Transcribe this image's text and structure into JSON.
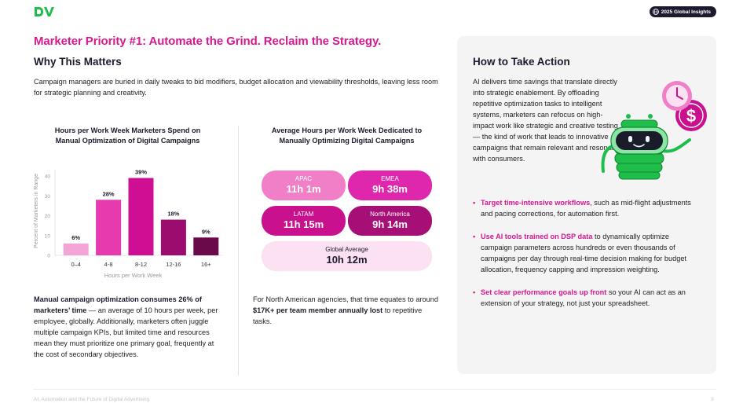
{
  "header": {
    "badge_label": "2025 Global Insights",
    "accent": "#d6198f",
    "logo_color": "#1fbd4a"
  },
  "page": {
    "title": "Marketer Priority #1: Automate the Grind. Reclaim the Strategy.",
    "section_title": "Why This Matters",
    "intro": "Campaign managers are buried in daily tweaks to bid modifiers, budget allocation and viewability thresholds, leaving less room for strategic planning and creativity."
  },
  "chart_data": [
    {
      "type": "bar",
      "title": "Hours per Work Week Marketers Spend on Manual Optimization of Digital Campaigns",
      "categories": [
        "0–4",
        "4-8",
        "8-12",
        "12-16",
        "16+"
      ],
      "values": [
        6,
        28,
        39,
        18,
        9
      ],
      "value_labels": [
        "6%",
        "28%",
        "39%",
        "18%",
        "9%"
      ],
      "colors": [
        "#f2a5d6",
        "#e63aae",
        "#cf0f93",
        "#9c0c6f",
        "#6b0a4b"
      ],
      "xlabel": "Hours per Work Week",
      "ylabel": "Percent of Marketers in Range",
      "ylim": [
        0,
        40
      ],
      "yticks": [
        0,
        10,
        20,
        30,
        40
      ],
      "ytick_labels": [
        "0",
        "10",
        "20",
        "30",
        "40"
      ],
      "grid": false
    },
    {
      "type": "table",
      "title": "Average Hours per Work Week Dedicated to Manually Optimizing Digital Campaigns",
      "regions": [
        {
          "label": "APAC",
          "value": "11h 1m"
        },
        {
          "label": "EMEA",
          "value": "9h 38m"
        },
        {
          "label": "LATAM",
          "value": "11h 15m"
        },
        {
          "label": "North America",
          "value": "9h 14m"
        }
      ],
      "global": {
        "label": "Global Average",
        "value": "10h 12m"
      }
    }
  ],
  "left_text": {
    "bold": "Manual campaign optimization consumes 26% of marketers’ time",
    "rest": " — an average of 10 hours per week, per employee, globally. Additionally, marketers often juggle multiple campaign KPIs, but limited time and resources mean they must prioritize one primary goal, frequently at the cost of secondary objectives."
  },
  "mid_text": {
    "pre": "For North American agencies, that time equates to around ",
    "bold": "$17K+ per team member annually lost",
    "post": " to repetitive tasks."
  },
  "action": {
    "title": "How to Take Action",
    "intro": "AI delivers time savings that translate directly into strategic enablement. By offloading repetitive optimization tasks to intelligent systems, marketers can refocus on high-impact work like strategic and creative testing — the kind of work that leads to innovative campaigns that remain relevant and resonate with consumers.",
    "bullets": [
      {
        "highlight": "Target time-intensive workflows",
        "text": ", such as mid-flight adjustments and pacing corrections, for automation first."
      },
      {
        "highlight": "Use AI tools trained on DSP data",
        "text": " to dynamically optimize campaign parameters across hundreds or even thousands of campaigns per day through real-time decision making for budget allocation, frequency capping and impression weighting."
      },
      {
        "highlight": "Set clear performance goals up front",
        "text": " so your AI can act as an extension of your strategy, not just your spreadsheet."
      }
    ],
    "robot_icon": "robot-clock-dollar-icon"
  },
  "footer": {
    "left": "AI, Automation and the Future of Digital Advertising",
    "page_number": "3"
  }
}
